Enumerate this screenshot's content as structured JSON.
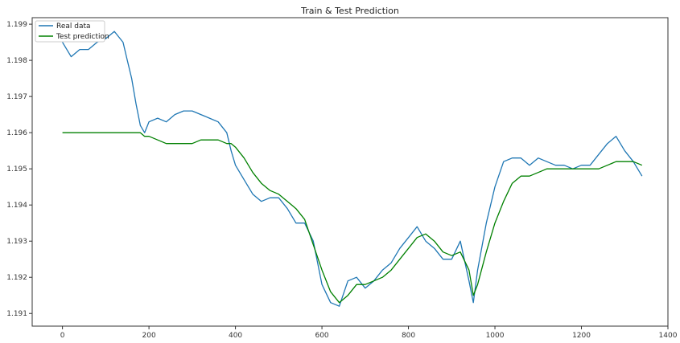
{
  "chart_data": {
    "type": "line",
    "title": "Train & Test Prediction",
    "xlabel": "",
    "ylabel": "",
    "xlim": [
      -70,
      1400
    ],
    "ylim": [
      1.19065,
      1.19918
    ],
    "x_ticks": [
      0,
      200,
      400,
      600,
      800,
      1000,
      1200,
      1400
    ],
    "y_ticks": [
      1.191,
      1.192,
      1.193,
      1.194,
      1.195,
      1.196,
      1.197,
      1.198,
      1.199
    ],
    "grid": false,
    "legend_position": "top-left",
    "series": [
      {
        "name": "Real data",
        "color": "#1f77b4",
        "x": [
          0,
          20,
          40,
          60,
          80,
          100,
          120,
          140,
          150,
          160,
          170,
          180,
          190,
          200,
          220,
          240,
          260,
          280,
          300,
          320,
          340,
          360,
          380,
          390,
          400,
          420,
          440,
          460,
          480,
          500,
          520,
          540,
          560,
          580,
          600,
          620,
          640,
          660,
          680,
          700,
          720,
          740,
          760,
          780,
          800,
          820,
          840,
          860,
          880,
          900,
          920,
          940,
          950,
          960,
          980,
          1000,
          1020,
          1040,
          1060,
          1080,
          1100,
          1120,
          1140,
          1160,
          1180,
          1200,
          1220,
          1240,
          1260,
          1280,
          1300,
          1320,
          1340
        ],
        "values": [
          1.1985,
          1.1981,
          1.1983,
          1.1983,
          1.1985,
          1.1986,
          1.1988,
          1.1985,
          1.198,
          1.1975,
          1.1968,
          1.1962,
          1.196,
          1.1963,
          1.1964,
          1.1963,
          1.1965,
          1.1966,
          1.1966,
          1.1965,
          1.1964,
          1.1963,
          1.196,
          1.1955,
          1.1951,
          1.1947,
          1.1943,
          1.1941,
          1.1942,
          1.1942,
          1.1939,
          1.1935,
          1.1935,
          1.193,
          1.1918,
          1.1913,
          1.1912,
          1.1919,
          1.192,
          1.1917,
          1.1919,
          1.1922,
          1.1924,
          1.1928,
          1.1931,
          1.1934,
          1.193,
          1.1928,
          1.1925,
          1.1925,
          1.193,
          1.1919,
          1.1913,
          1.1922,
          1.1935,
          1.1945,
          1.1952,
          1.1953,
          1.1953,
          1.1951,
          1.1953,
          1.1952,
          1.1951,
          1.1951,
          1.195,
          1.1951,
          1.1951,
          1.1954,
          1.1957,
          1.1959,
          1.1955,
          1.1952,
          1.1948
        ]
      },
      {
        "name": "Test prediction",
        "color": "#008000",
        "x": [
          0,
          20,
          40,
          60,
          80,
          100,
          120,
          140,
          150,
          160,
          170,
          180,
          190,
          200,
          220,
          240,
          260,
          280,
          300,
          320,
          340,
          360,
          380,
          390,
          400,
          420,
          440,
          460,
          480,
          500,
          520,
          540,
          560,
          580,
          600,
          620,
          640,
          660,
          680,
          700,
          720,
          740,
          760,
          780,
          800,
          820,
          840,
          860,
          880,
          900,
          920,
          940,
          950,
          960,
          980,
          1000,
          1020,
          1040,
          1060,
          1080,
          1100,
          1120,
          1140,
          1160,
          1180,
          1200,
          1220,
          1240,
          1260,
          1280,
          1300,
          1320,
          1340
        ],
        "values": [
          1.196,
          1.196,
          1.196,
          1.196,
          1.196,
          1.196,
          1.196,
          1.196,
          1.196,
          1.196,
          1.196,
          1.196,
          1.1959,
          1.1959,
          1.1958,
          1.1957,
          1.1957,
          1.1957,
          1.1957,
          1.1958,
          1.1958,
          1.1958,
          1.1957,
          1.1957,
          1.1956,
          1.1953,
          1.1949,
          1.1946,
          1.1944,
          1.1943,
          1.1941,
          1.1939,
          1.1936,
          1.1929,
          1.1922,
          1.1916,
          1.1913,
          1.1915,
          1.1918,
          1.1918,
          1.1919,
          1.192,
          1.1922,
          1.1925,
          1.1928,
          1.1931,
          1.1932,
          1.193,
          1.1927,
          1.1926,
          1.1927,
          1.1922,
          1.1915,
          1.1918,
          1.1927,
          1.1935,
          1.1941,
          1.1946,
          1.1948,
          1.1948,
          1.1949,
          1.195,
          1.195,
          1.195,
          1.195,
          1.195,
          1.195,
          1.195,
          1.1951,
          1.1952,
          1.1952,
          1.1952,
          1.1951
        ]
      }
    ]
  }
}
